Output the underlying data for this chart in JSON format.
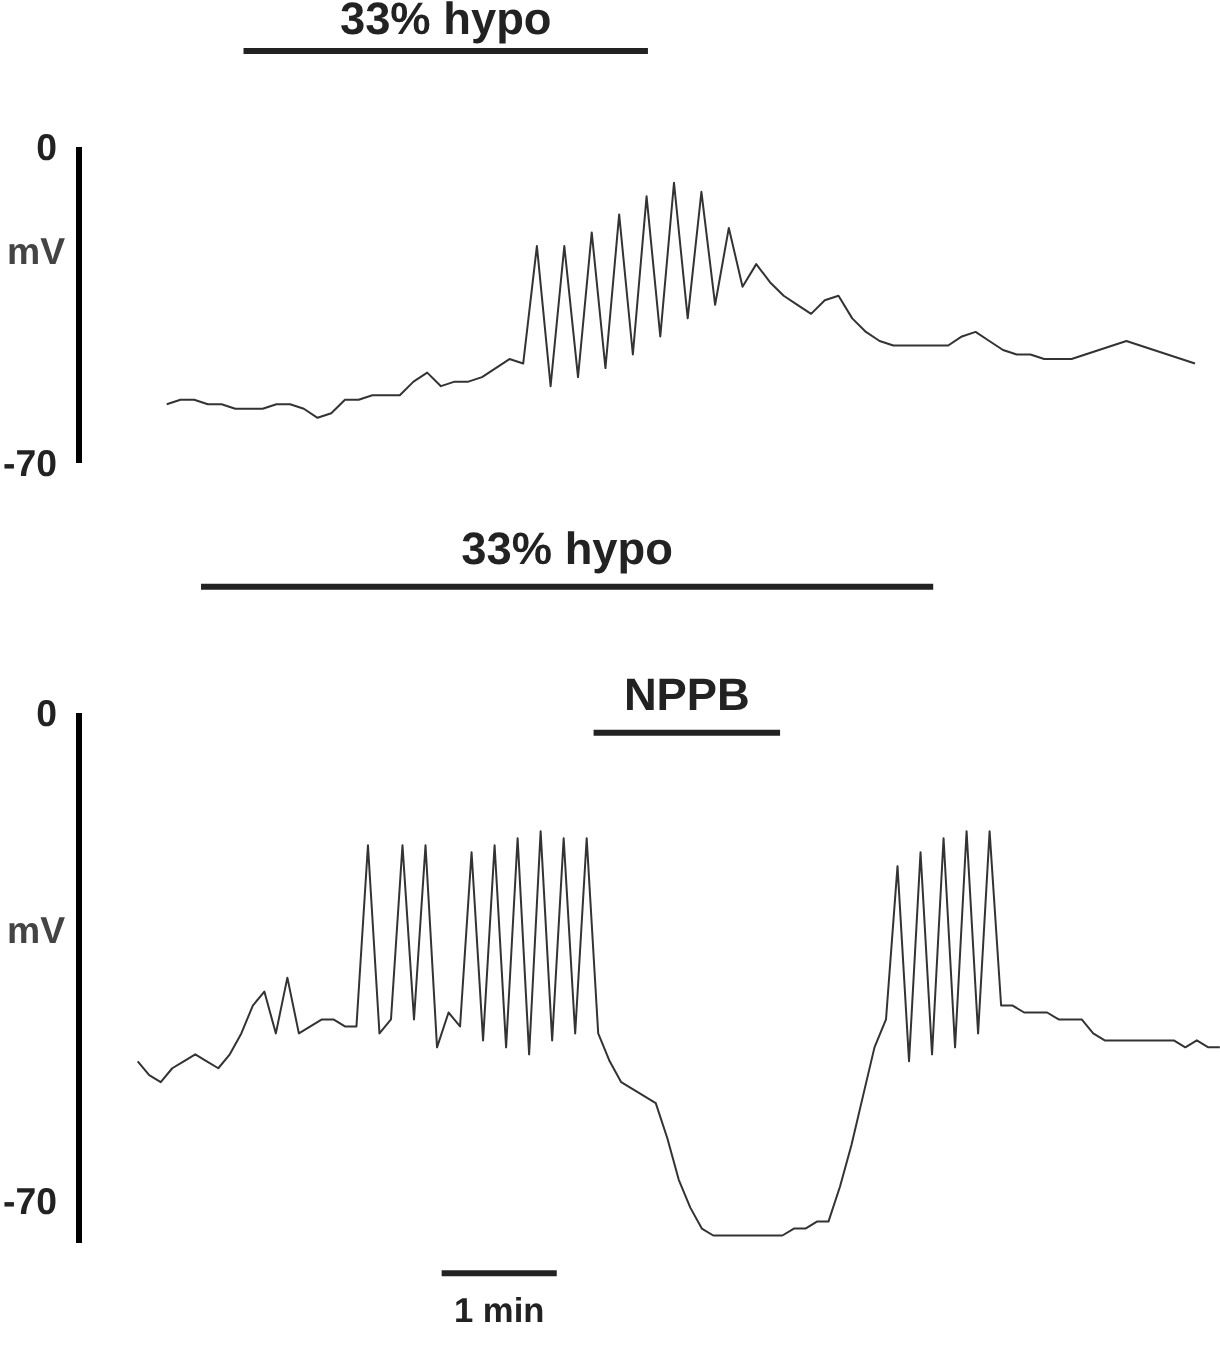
{
  "chart_data": [
    {
      "type": "line",
      "ylabel": "mV",
      "ylim": [
        -70,
        0
      ],
      "yticks": [
        0,
        -70
      ],
      "tick_labels": "y",
      "annotations": [
        "33% hypo"
      ],
      "categories": [
        null,
        null,
        null,
        null,
        null,
        null,
        null,
        null,
        null,
        null,
        null,
        null,
        null,
        null,
        null,
        null,
        null,
        null,
        null,
        null,
        null,
        null,
        null,
        null,
        null,
        null,
        null,
        null,
        null,
        null,
        null,
        null,
        null,
        null,
        null,
        null,
        null,
        null,
        null,
        null,
        null,
        null,
        null,
        null,
        null,
        null,
        null,
        null,
        null,
        null,
        null,
        null,
        null,
        null,
        null,
        null,
        null,
        null,
        null,
        null,
        null,
        null,
        null,
        null,
        null,
        null,
        null,
        null,
        null,
        null,
        null,
        null,
        null,
        null,
        null,
        null
      ],
      "series": [
        {
          "color": "#333333",
          "values": [
            -57,
            -56,
            -56,
            -57,
            -57,
            -58,
            -58,
            -58,
            -57,
            -57,
            -58,
            -60,
            -59,
            -56,
            -56,
            -55,
            -55,
            -55,
            -52,
            -50,
            -53,
            -52,
            -52,
            -51,
            -49,
            -47,
            -48,
            -22,
            -53,
            -22,
            -51,
            -19,
            -49,
            -15,
            -46,
            -11,
            -42,
            -8,
            -38,
            -10,
            -35,
            -18,
            -31,
            -26,
            -30,
            -33,
            -35,
            -37,
            -34,
            -33,
            -38,
            -41,
            -43,
            -44,
            -44,
            -44,
            -44,
            -44,
            -42,
            -41,
            -43,
            -45,
            -46,
            -46,
            -47,
            -47,
            -47,
            -46,
            -45,
            -44,
            -43,
            -44,
            -45,
            -46,
            -47,
            -48
          ]
        }
      ]
    },
    {
      "type": "line",
      "ylabel": "mV",
      "ylim": [
        -76,
        0
      ],
      "yticks": [
        0,
        -70
      ],
      "tick_labels": "y",
      "annotations": [
        "33% hypo",
        "NPPB",
        "1 min"
      ],
      "categories": [
        null,
        null,
        null,
        null,
        null,
        null,
        null,
        null,
        null,
        null,
        null,
        null,
        null,
        null,
        null,
        null,
        null,
        null,
        null,
        null,
        null,
        null,
        null,
        null,
        null,
        null,
        null,
        null,
        null,
        null,
        null,
        null,
        null,
        null,
        null,
        null,
        null,
        null,
        null,
        null,
        null,
        null,
        null,
        null,
        null,
        null,
        null,
        null,
        null,
        null,
        null,
        null,
        null,
        null,
        null,
        null,
        null,
        null,
        null,
        null,
        null,
        null,
        null,
        null,
        null,
        null,
        null,
        null,
        null,
        null,
        null,
        null,
        null,
        null,
        null,
        null,
        null,
        null,
        null,
        null,
        null,
        null,
        null,
        null,
        null,
        null,
        null,
        null,
        null,
        null,
        null,
        null,
        null,
        null,
        null
      ],
      "series": [
        {
          "color": "#333333",
          "values": [
            -50,
            -52,
            -53,
            -51,
            -50,
            -49,
            -50,
            -51,
            -49,
            -46,
            -42,
            -40,
            -46,
            -38,
            -46,
            -45,
            -44,
            -44,
            -45,
            -45,
            -19,
            -46,
            -44,
            -19,
            -44,
            -19,
            -48,
            -43,
            -45,
            -20,
            -47,
            -19,
            -48,
            -18,
            -49,
            -17,
            -47,
            -18,
            -46,
            -18,
            -46,
            -50,
            -53,
            -54,
            -55,
            -56,
            -61,
            -67,
            -71,
            -74,
            -75,
            -75,
            -75,
            -75,
            -75,
            -75,
            -75,
            -74,
            -74,
            -73,
            -73,
            -68,
            -62,
            -55,
            -48,
            -44,
            -22,
            -50,
            -20,
            -49,
            -18,
            -48,
            -17,
            -46,
            -17,
            -42,
            -42,
            -43,
            -43,
            -43,
            -44,
            -44,
            -44,
            -46,
            -47,
            -47,
            -47,
            -47,
            -47,
            -47,
            -47,
            -48,
            -47,
            -48,
            -48
          ]
        }
      ]
    }
  ]
}
